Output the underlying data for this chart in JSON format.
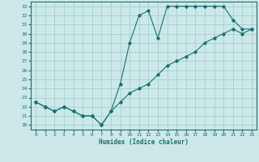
{
  "title": "",
  "xlabel": "Humidex (Indice chaleur)",
  "background_color": "#cce8e8",
  "grid_color": "#99cccc",
  "line_color": "#1a7070",
  "xlim": [
    -0.5,
    23.5
  ],
  "ylim": [
    19.5,
    33.5
  ],
  "xticks": [
    0,
    1,
    2,
    3,
    4,
    5,
    6,
    7,
    8,
    9,
    10,
    11,
    12,
    13,
    14,
    15,
    16,
    17,
    18,
    19,
    20,
    21,
    22,
    23
  ],
  "yticks": [
    20,
    21,
    22,
    23,
    24,
    25,
    26,
    27,
    28,
    29,
    30,
    31,
    32,
    33
  ],
  "line1_x": [
    0,
    1,
    2,
    3,
    4,
    5,
    6,
    7,
    8,
    9,
    10,
    11,
    12,
    13,
    14,
    15,
    16,
    17,
    18,
    19,
    20,
    21,
    22,
    23
  ],
  "line1_y": [
    22.5,
    22.0,
    21.5,
    22.0,
    21.5,
    21.0,
    21.0,
    20.0,
    21.5,
    24.5,
    29.0,
    32.0,
    32.5,
    29.5,
    33.0,
    33.0,
    33.0,
    33.0,
    33.0,
    33.0,
    33.0,
    31.5,
    30.5,
    30.5
  ],
  "line2_x": [
    0,
    1,
    2,
    3,
    4,
    5,
    6,
    7,
    8,
    9,
    10,
    11,
    12,
    13,
    14,
    15,
    16,
    17,
    18,
    19,
    20,
    21,
    22,
    23
  ],
  "line2_y": [
    22.5,
    22.0,
    21.5,
    22.0,
    21.5,
    21.0,
    21.0,
    20.0,
    21.5,
    22.5,
    23.5,
    24.0,
    24.5,
    25.5,
    26.5,
    27.0,
    27.5,
    28.0,
    29.0,
    29.5,
    30.0,
    30.5,
    30.0,
    30.5
  ]
}
